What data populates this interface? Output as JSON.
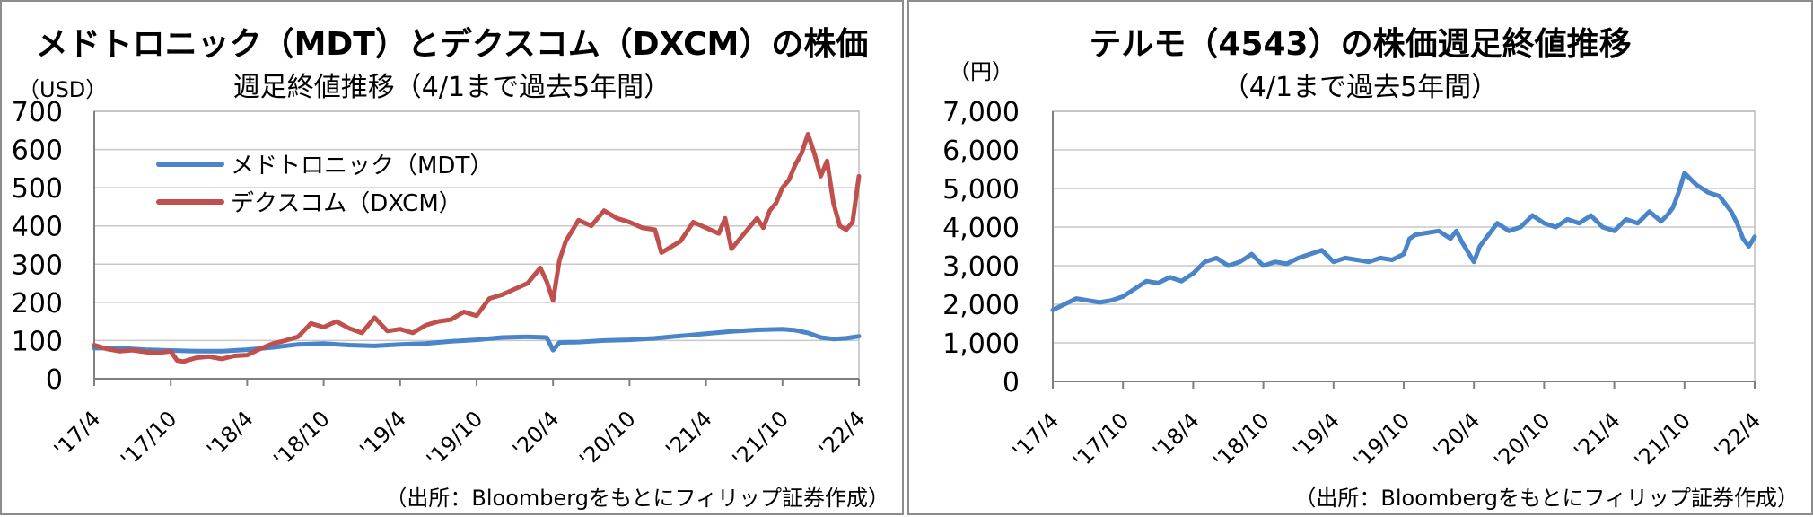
{
  "charts": [
    {
      "id": "left",
      "title": "メドトロニック（MDT）とデクスコム（DXCM）の株価",
      "subtitle": "週足終値推移（4/1まで過去5年間）",
      "unit": "（USD）",
      "source": "（出所：Bloombergをもとにフィリップ証券作成）",
      "yticks": [
        "700",
        "600",
        "500",
        "400",
        "300",
        "200",
        "100",
        "0"
      ],
      "xticks": [
        "'17/4",
        "'17/10",
        "'18/4",
        "'18/10",
        "'19/4",
        "'19/10",
        "'20/4",
        "'20/10",
        "'21/4",
        "'21/10",
        "'22/4"
      ],
      "legend": [
        "メドトロニック（MDT）",
        "デクスコム（DXCM）"
      ]
    },
    {
      "id": "right",
      "title": "テルモ（4543）の株価週足終値推移",
      "subtitle": "（4/1まで過去5年間）",
      "unit": "（円）",
      "source": "（出所：Bloombergをもとにフィリップ証券作成）",
      "yticks": [
        "7,000",
        "6,000",
        "5,000",
        "4,000",
        "3,000",
        "2,000",
        "1,000",
        "0"
      ],
      "xticks": [
        "'17/4",
        "'17/10",
        "'18/4",
        "'18/10",
        "'19/4",
        "'19/10",
        "'20/4",
        "'20/10",
        "'21/4",
        "'21/10",
        "'22/4"
      ],
      "legend": []
    }
  ],
  "colors": {
    "mdt": "#4a85c9",
    "dxcm": "#c0504d",
    "terumo": "#4a85c9",
    "grid": "#c8c8c8"
  },
  "chart_data": [
    {
      "type": "line",
      "title": "メドトロニック（MDT）とデクスコム（DXCM）の株価週足終値推移（4/1まで過去5年間）",
      "ylabel": "（USD）",
      "ylim": [
        0,
        700
      ],
      "grid": true,
      "legend_position": "top-left",
      "xlim": [
        0,
        60
      ],
      "x_tick_positions": [
        0,
        6,
        12,
        18,
        24,
        30,
        36,
        42,
        48,
        54,
        60
      ],
      "x_tick_labels": [
        "'17/4",
        "'17/10",
        "'18/4",
        "'18/10",
        "'19/4",
        "'19/10",
        "'20/4",
        "'20/10",
        "'21/4",
        "'21/10",
        "'22/4"
      ],
      "series": [
        {
          "name": "メドトロニック（MDT）",
          "x": [
            0,
            2,
            4,
            6,
            8,
            10,
            12,
            14,
            16,
            18,
            20,
            22,
            24,
            26,
            28,
            30,
            32,
            34,
            35.5,
            36,
            36.5,
            38,
            40,
            42,
            44,
            46,
            48,
            50,
            52,
            54,
            55,
            56,
            57,
            58,
            59,
            60
          ],
          "values": [
            80,
            80,
            76,
            74,
            72,
            72,
            76,
            82,
            90,
            92,
            88,
            86,
            90,
            92,
            98,
            102,
            108,
            110,
            108,
            75,
            95,
            96,
            100,
            102,
            106,
            112,
            118,
            124,
            128,
            130,
            127,
            120,
            108,
            104,
            106,
            111
          ]
        },
        {
          "name": "デクスコム（DXCM）",
          "x": [
            0,
            1,
            2,
            3,
            4,
            5,
            6,
            6.5,
            7,
            8,
            9,
            10,
            11,
            12,
            13,
            14,
            15,
            16,
            17,
            18,
            19,
            20,
            21,
            22,
            23,
            24,
            25,
            26,
            27,
            28,
            29,
            30,
            31,
            32,
            33,
            34,
            35,
            35.5,
            36,
            36.5,
            37,
            38,
            39,
            40,
            41,
            42,
            43,
            44,
            44.5,
            45,
            46,
            47,
            48,
            49,
            49.5,
            50,
            51,
            52,
            52.5,
            53,
            53.5,
            54,
            54.5,
            55,
            55.5,
            56,
            56.5,
            57,
            57.5,
            58,
            58.5,
            59,
            59.5,
            60
          ],
          "values": [
            88,
            78,
            72,
            75,
            70,
            68,
            72,
            48,
            45,
            55,
            58,
            52,
            60,
            62,
            78,
            92,
            100,
            110,
            145,
            135,
            150,
            132,
            120,
            160,
            125,
            130,
            120,
            140,
            150,
            155,
            175,
            165,
            210,
            220,
            235,
            250,
            290,
            255,
            205,
            310,
            360,
            415,
            400,
            440,
            420,
            410,
            395,
            390,
            330,
            340,
            360,
            410,
            395,
            380,
            420,
            340,
            380,
            420,
            395,
            440,
            460,
            500,
            520,
            560,
            590,
            640,
            590,
            530,
            570,
            460,
            400,
            390,
            410,
            530
          ]
        }
      ]
    },
    {
      "type": "line",
      "title": "テルモ（4543）の株価週足終値推移（4/1まで過去5年間）",
      "ylabel": "（円）",
      "ylim": [
        0,
        7000
      ],
      "grid": true,
      "xlim": [
        0,
        60
      ],
      "x_tick_positions": [
        0,
        6,
        12,
        18,
        24,
        30,
        36,
        42,
        48,
        54,
        60
      ],
      "x_tick_labels": [
        "'17/4",
        "'17/10",
        "'18/4",
        "'18/10",
        "'19/4",
        "'19/10",
        "'20/4",
        "'20/10",
        "'21/4",
        "'21/10",
        "'22/4"
      ],
      "series": [
        {
          "x": [
            0,
            1,
            2,
            3,
            4,
            5,
            6,
            7,
            8,
            9,
            10,
            11,
            12,
            13,
            14,
            15,
            16,
            17,
            18,
            19,
            20,
            21,
            22,
            23,
            24,
            25,
            26,
            27,
            28,
            29,
            30,
            30.5,
            31,
            32,
            33,
            34,
            34.5,
            35,
            36,
            36.5,
            37,
            38,
            39,
            40,
            41,
            42,
            43,
            44,
            45,
            46,
            47,
            48,
            49,
            50,
            51,
            52,
            52.5,
            53,
            53.5,
            54,
            55,
            56,
            57,
            58,
            58.5,
            59,
            59.5,
            60
          ],
          "values": [
            1850,
            2000,
            2150,
            2100,
            2050,
            2100,
            2200,
            2400,
            2600,
            2550,
            2700,
            2600,
            2800,
            3100,
            3200,
            3000,
            3100,
            3300,
            3000,
            3100,
            3050,
            3200,
            3300,
            3400,
            3100,
            3200,
            3150,
            3100,
            3200,
            3150,
            3300,
            3700,
            3800,
            3850,
            3900,
            3700,
            3900,
            3600,
            3100,
            3500,
            3700,
            4100,
            3900,
            4000,
            4300,
            4100,
            4000,
            4200,
            4100,
            4300,
            4000,
            3900,
            4200,
            4100,
            4400,
            4150,
            4300,
            4500,
            4900,
            5400,
            5100,
            4900,
            4800,
            4400,
            4100,
            3700,
            3500,
            3750
          ]
        }
      ]
    }
  ]
}
